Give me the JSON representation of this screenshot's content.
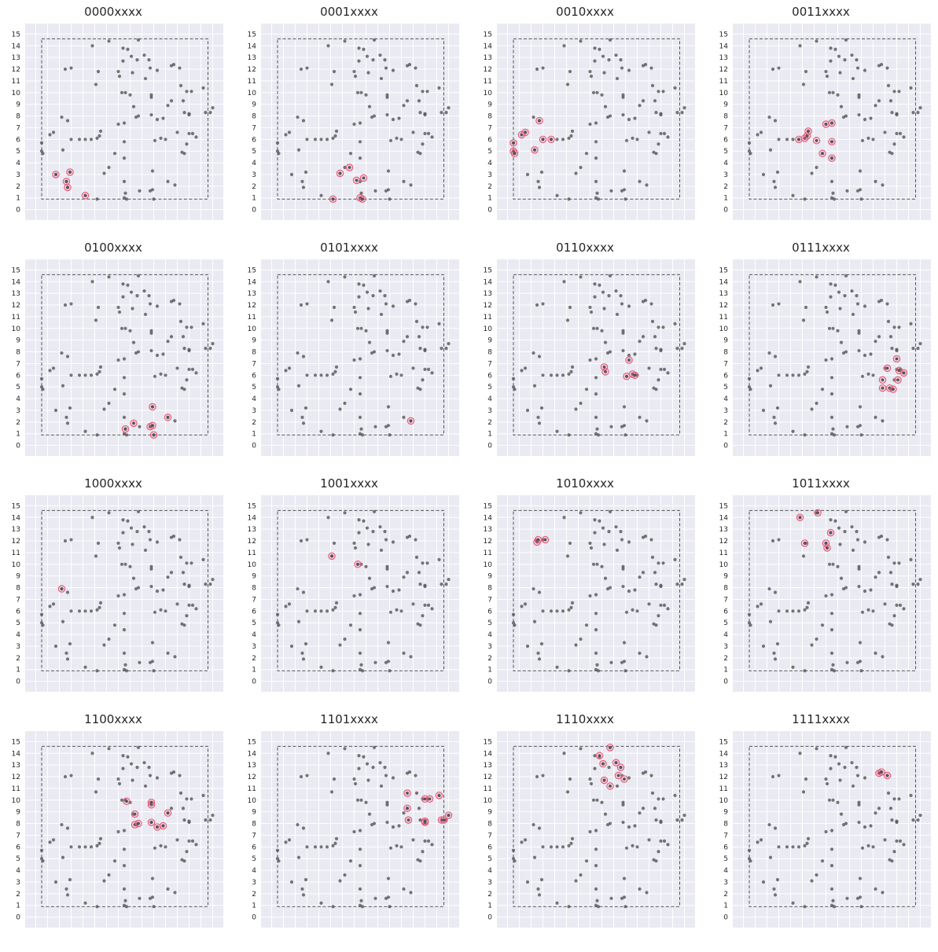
{
  "figure": {
    "background": "#ffffff"
  },
  "style": {
    "panel_background": "#eaeaf2",
    "grid_color": "#ffffff",
    "point_color": "#555555",
    "highlight_color": "#e8587a",
    "box_color": "#555555",
    "tick_color": "#262626"
  },
  "chart_data": {
    "type": "scatter",
    "xticks": [
      0,
      1,
      2,
      3,
      4,
      5,
      6,
      7,
      8,
      9,
      10,
      11,
      12,
      13,
      14,
      15
    ],
    "yticks": [
      0,
      1,
      2,
      3,
      4,
      5,
      6,
      7,
      8,
      9,
      10,
      11,
      12,
      13,
      14,
      15
    ],
    "xlim": [
      -0.9,
      15.9
    ],
    "ylim": [
      -0.9,
      15.9
    ],
    "grid": true,
    "boundary_box": {
      "x": [
        0.5,
        14.6
      ],
      "y": [
        0.9,
        14.6
      ],
      "style": "dashed"
    },
    "points": [
      [
        0.5,
        5.7
      ],
      [
        0.5,
        5.0
      ],
      [
        0.6,
        4.8
      ],
      [
        1.2,
        6.4
      ],
      [
        1.5,
        6.6
      ],
      [
        1.7,
        3.0
      ],
      [
        2.2,
        7.9
      ],
      [
        2.3,
        5.1
      ],
      [
        2.5,
        12.0
      ],
      [
        2.6,
        2.4
      ],
      [
        2.7,
        7.6
      ],
      [
        2.7,
        1.9
      ],
      [
        2.9,
        3.2
      ],
      [
        3.0,
        12.1
      ],
      [
        3.0,
        6.0
      ],
      [
        4.2,
        1.2
      ],
      [
        3.7,
        6.0
      ],
      [
        4.2,
        6.0
      ],
      [
        4.8,
        14.0
      ],
      [
        4.7,
        6.0
      ],
      [
        5.1,
        10.7
      ],
      [
        5.2,
        6.1
      ],
      [
        5.3,
        11.8
      ],
      [
        5.2,
        0.9
      ],
      [
        5.4,
        6.3
      ],
      [
        5.5,
        6.7
      ],
      [
        5.8,
        3.1
      ],
      [
        6.2,
        14.4
      ],
      [
        6.2,
        3.6
      ],
      [
        6.7,
        4.8
      ],
      [
        7.0,
        11.8
      ],
      [
        7.1,
        11.4
      ],
      [
        7.0,
        7.3
      ],
      [
        7.3,
        10.0
      ],
      [
        7.4,
        12.7
      ],
      [
        7.4,
        13.8
      ],
      [
        7.5,
        7.4
      ],
      [
        7.5,
        5.8
      ],
      [
        7.5,
        4.4
      ],
      [
        7.5,
        2.4
      ],
      [
        7.6,
        1.4
      ],
      [
        7.5,
        1.0
      ],
      [
        7.7,
        0.9
      ],
      [
        7.6,
        10.0
      ],
      [
        7.8,
        13.7
      ],
      [
        8.0,
        9.8
      ],
      [
        8.1,
        13.1
      ],
      [
        8.2,
        11.7
      ],
      [
        8.3,
        8.8
      ],
      [
        8.5,
        7.9
      ],
      [
        8.6,
        12.8
      ],
      [
        8.7,
        14.5
      ],
      [
        8.7,
        8.0
      ],
      [
        8.8,
        1.6
      ],
      [
        9.2,
        13.2
      ],
      [
        9.3,
        11.2
      ],
      [
        9.6,
        12.8
      ],
      [
        9.7,
        12.1
      ],
      [
        9.8,
        9.6
      ],
      [
        9.8,
        9.8
      ],
      [
        9.8,
        8.1
      ],
      [
        9.9,
        3.3
      ],
      [
        9.9,
        1.7
      ],
      [
        9.7,
        1.6
      ],
      [
        10.0,
        0.9
      ],
      [
        10.1,
        5.9
      ],
      [
        10.3,
        11.9
      ],
      [
        10.3,
        7.7
      ],
      [
        10.6,
        6.1
      ],
      [
        10.8,
        7.8
      ],
      [
        11.0,
        6.0
      ],
      [
        11.2,
        8.9
      ],
      [
        11.2,
        2.4
      ],
      [
        11.5,
        9.3
      ],
      [
        11.5,
        12.3
      ],
      [
        11.7,
        12.4
      ],
      [
        11.8,
        2.1
      ],
      [
        12.0,
        6.6
      ],
      [
        12.2,
        12.1
      ],
      [
        12.3,
        10.6
      ],
      [
        12.4,
        4.9
      ],
      [
        12.6,
        4.8
      ],
      [
        12.5,
        9.3
      ],
      [
        12.6,
        8.3
      ],
      [
        12.8,
        5.6
      ],
      [
        12.8,
        10.1
      ],
      [
        13.0,
        6.5
      ],
      [
        13.0,
        8.1
      ],
      [
        13.0,
        8.2
      ],
      [
        13.2,
        10.1
      ],
      [
        13.3,
        6.5
      ],
      [
        13.6,
        6.2
      ],
      [
        14.2,
        10.4
      ],
      [
        14.4,
        8.3
      ],
      [
        14.8,
        8.3
      ],
      [
        15.0,
        8.7
      ]
    ],
    "panels": [
      {
        "title": "0000xxxx",
        "highlighted": [
          [
            1.7,
            3.0
          ],
          [
            2.6,
            2.4
          ],
          [
            2.9,
            3.2
          ],
          [
            2.7,
            1.9
          ],
          [
            4.2,
            1.2
          ]
        ]
      },
      {
        "title": "0001xxxx",
        "highlighted": [
          [
            5.8,
            3.1
          ],
          [
            6.6,
            3.6
          ],
          [
            7.2,
            2.5
          ],
          [
            7.8,
            2.7
          ],
          [
            5.2,
            0.9
          ],
          [
            7.5,
            1.0
          ],
          [
            7.7,
            0.9
          ]
        ]
      },
      {
        "title": "0010xxxx",
        "highlighted": [
          [
            0.5,
            5.7
          ],
          [
            0.5,
            5.0
          ],
          [
            0.6,
            4.8
          ],
          [
            1.2,
            6.4
          ],
          [
            1.5,
            6.6
          ],
          [
            2.3,
            5.1
          ],
          [
            2.7,
            7.6
          ],
          [
            3.0,
            6.0
          ],
          [
            3.7,
            6.0
          ]
        ]
      },
      {
        "title": "0011xxxx",
        "highlighted": [
          [
            4.7,
            6.0
          ],
          [
            5.2,
            6.1
          ],
          [
            5.4,
            6.3
          ],
          [
            5.5,
            6.7
          ],
          [
            6.2,
            5.9
          ],
          [
            7.0,
            7.3
          ],
          [
            7.5,
            7.4
          ],
          [
            6.7,
            4.8
          ],
          [
            7.5,
            5.8
          ],
          [
            7.5,
            4.4
          ]
        ]
      },
      {
        "title": "0100xxxx",
        "highlighted": [
          [
            7.6,
            1.4
          ],
          [
            8.3,
            1.9
          ],
          [
            9.7,
            1.6
          ],
          [
            9.9,
            1.7
          ],
          [
            9.9,
            3.3
          ],
          [
            10.0,
            0.9
          ],
          [
            11.2,
            2.4
          ]
        ]
      },
      {
        "title": "0101xxxx",
        "highlighted": [
          [
            11.8,
            2.1
          ]
        ]
      },
      {
        "title": "0110xxxx",
        "highlighted": [
          [
            8.2,
            6.7
          ],
          [
            8.3,
            6.3
          ],
          [
            10.1,
            5.9
          ],
          [
            10.3,
            7.3
          ],
          [
            10.6,
            6.1
          ],
          [
            10.8,
            6.0
          ]
        ]
      },
      {
        "title": "0111xxxx",
        "highlighted": [
          [
            11.8,
            5.6
          ],
          [
            11.8,
            4.9
          ],
          [
            12.2,
            6.6
          ],
          [
            12.4,
            4.9
          ],
          [
            12.7,
            4.8
          ],
          [
            13.0,
            7.4
          ],
          [
            13.2,
            6.4
          ],
          [
            13.1,
            5.6
          ],
          [
            13.6,
            6.2
          ]
        ]
      },
      {
        "title": "1000xxxx",
        "highlighted": [
          [
            2.2,
            7.9
          ]
        ]
      },
      {
        "title": "1001xxxx",
        "highlighted": [
          [
            5.1,
            10.7
          ],
          [
            7.3,
            10.0
          ]
        ]
      },
      {
        "title": "1010xxxx",
        "highlighted": [
          [
            2.5,
            11.9
          ],
          [
            2.6,
            12.1
          ],
          [
            3.2,
            12.1
          ]
        ]
      },
      {
        "title": "1011xxxx",
        "highlighted": [
          [
            4.8,
            14.0
          ],
          [
            6.3,
            14.4
          ],
          [
            5.2,
            11.8
          ],
          [
            7.4,
            12.7
          ],
          [
            7.0,
            11.8
          ],
          [
            7.1,
            11.4
          ]
        ]
      },
      {
        "title": "1100xxxx",
        "highlighted": [
          [
            7.7,
            9.9
          ],
          [
            8.4,
            8.8
          ],
          [
            8.4,
            7.9
          ],
          [
            8.7,
            8.0
          ],
          [
            9.8,
            9.6
          ],
          [
            9.8,
            9.8
          ],
          [
            9.8,
            8.1
          ],
          [
            10.3,
            7.7
          ],
          [
            10.8,
            7.8
          ],
          [
            11.2,
            8.9
          ]
        ]
      },
      {
        "title": "1101xxxx",
        "highlighted": [
          [
            11.5,
            10.6
          ],
          [
            11.5,
            9.3
          ],
          [
            11.6,
            8.3
          ],
          [
            13.0,
            8.1
          ],
          [
            13.0,
            8.2
          ],
          [
            13.0,
            10.1
          ],
          [
            13.4,
            10.1
          ],
          [
            14.2,
            10.4
          ],
          [
            14.4,
            8.3
          ],
          [
            14.6,
            8.3
          ],
          [
            15.0,
            8.7
          ]
        ]
      },
      {
        "title": "1110xxxx",
        "highlighted": [
          [
            7.8,
            13.8
          ],
          [
            8.1,
            13.1
          ],
          [
            8.7,
            14.5
          ],
          [
            9.2,
            13.2
          ],
          [
            9.6,
            12.8
          ],
          [
            9.4,
            12.1
          ],
          [
            8.2,
            11.7
          ],
          [
            8.7,
            11.2
          ],
          [
            9.9,
            11.8
          ]
        ]
      },
      {
        "title": "1111xxxx",
        "highlighted": [
          [
            11.5,
            12.3
          ],
          [
            11.7,
            12.4
          ],
          [
            12.2,
            12.1
          ]
        ]
      }
    ]
  }
}
